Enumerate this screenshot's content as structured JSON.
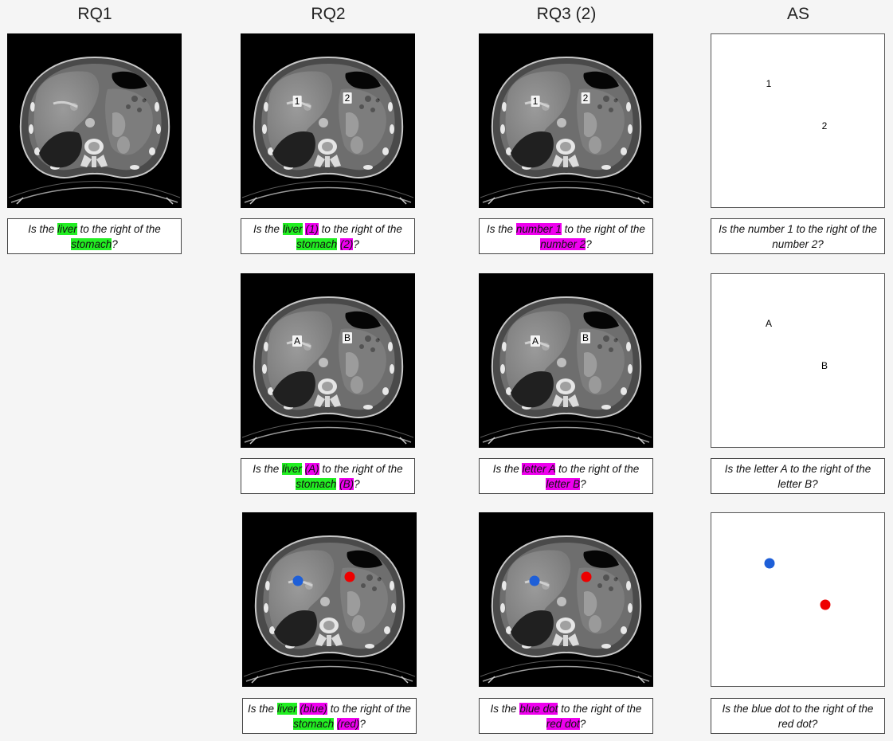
{
  "headers": [
    "RQ1",
    "RQ2",
    "RQ3 (2)",
    "AS"
  ],
  "colors": {
    "green_highlight": "#22ee22",
    "magenta_highlight": "#ee00ee",
    "blue_dot": "#1e5fd8",
    "red_dot": "#ee0000"
  },
  "rq1": {
    "q1": [
      "Is the ",
      "liver",
      " to the right of the ",
      "stomach",
      "?"
    ]
  },
  "rq2": {
    "labels_num": [
      "1",
      "2"
    ],
    "labels_let": [
      "A",
      "B"
    ],
    "q1": [
      "Is the ",
      "liver",
      " ",
      "(1)",
      " to the right of the ",
      "stomach",
      " ",
      "(2)",
      "?"
    ],
    "q2": [
      "Is the ",
      "liver",
      " ",
      "(A)",
      " to the right of the ",
      "stomach",
      " ",
      "(B)",
      "?"
    ],
    "q3": [
      "Is the ",
      "liver",
      " ",
      "(blue)",
      " to the right of the ",
      "stomach",
      " ",
      "(red)",
      "?"
    ]
  },
  "rq3": {
    "labels_num": [
      "1",
      "2"
    ],
    "labels_let": [
      "A",
      "B"
    ],
    "q1": [
      "Is the ",
      "number 1",
      " to the right of the ",
      "number 2",
      "?"
    ],
    "q2": [
      "Is the ",
      "letter A",
      " to the right of the ",
      "letter B",
      "?"
    ],
    "q3": [
      "Is the ",
      "blue dot",
      " to the right of the ",
      "red dot",
      "?"
    ]
  },
  "as": {
    "labels_num": [
      "1",
      "2"
    ],
    "labels_let": [
      "A",
      "B"
    ],
    "q1": "Is the number 1 to the right of the number 2?",
    "q2": "Is the letter A to the right of the letter B?",
    "q3": "Is the blue dot to the right of the red dot?"
  }
}
